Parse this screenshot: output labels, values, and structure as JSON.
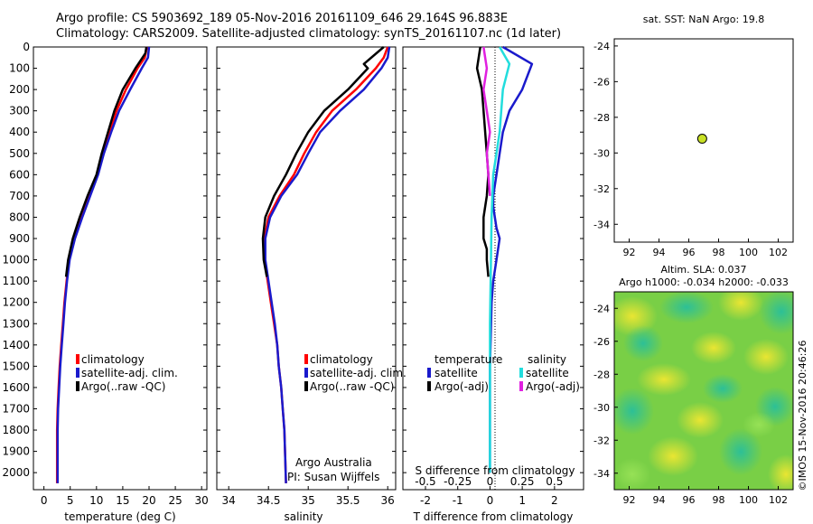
{
  "header": {
    "line1": "Argo profile: CS 5903692_189 05-Nov-2016 20161109_646 29.164S 96.883E",
    "line2": "Climatology: CARS2009. Satellite-adjusted climatology: synTS_20161107.nc (1d later)"
  },
  "colors": {
    "climatology": "#ff0000",
    "satellite": "#1a1acc",
    "argo": "#000000",
    "sat_salinity": "#22dddd",
    "argo_salinity": "#e020e0",
    "dot": "#c8e026"
  },
  "chart_data": [
    {
      "type": "line",
      "id": "temperature",
      "xlabel": "temperature (deg C)",
      "ylabel": "",
      "xlim": [
        -2,
        31
      ],
      "ylim": [
        2080,
        0
      ],
      "xticks": [
        0,
        5,
        10,
        15,
        20,
        25,
        30
      ],
      "yticks": [
        0,
        100,
        200,
        300,
        400,
        500,
        600,
        700,
        800,
        900,
        1000,
        1100,
        1200,
        1300,
        1400,
        1500,
        1600,
        1700,
        1800,
        1900,
        2000
      ],
      "legend": [
        "climatology",
        "satellite-adj. clim.",
        "Argo(..raw -QC)"
      ],
      "series": [
        {
          "name": "climatology",
          "x": [
            19.6,
            19.2,
            17.8,
            15.6,
            13.8,
            12.5,
            11.2,
            10.2,
            8.7,
            7.2,
            5.8,
            4.8,
            4.3,
            3.9,
            3.6,
            3.3,
            3.0,
            2.8,
            2.6,
            2.5,
            2.5
          ],
          "y": [
            0,
            50,
            100,
            200,
            300,
            400,
            500,
            600,
            700,
            800,
            900,
            1000,
            1100,
            1200,
            1300,
            1400,
            1500,
            1600,
            1700,
            1800,
            2050
          ]
        },
        {
          "name": "satellite-adj. clim.",
          "x": [
            20.0,
            19.8,
            18.6,
            16.4,
            14.3,
            12.8,
            11.4,
            10.3,
            8.8,
            7.3,
            5.9,
            4.9,
            4.4,
            4.0,
            3.7,
            3.4,
            3.1,
            2.9,
            2.7,
            2.6,
            2.6
          ],
          "y": [
            0,
            50,
            100,
            200,
            300,
            400,
            500,
            600,
            700,
            800,
            900,
            1000,
            1100,
            1200,
            1300,
            1400,
            1500,
            1600,
            1700,
            1800,
            2050
          ]
        },
        {
          "name": "Argo(..raw -QC)",
          "x": [
            19.5,
            19.3,
            17.4,
            15.0,
            13.4,
            12.2,
            11.0,
            10.0,
            8.3,
            6.8,
            5.5,
            4.6,
            4.2
          ],
          "y": [
            0,
            30,
            100,
            200,
            300,
            400,
            500,
            600,
            700,
            800,
            900,
            1000,
            1080
          ]
        }
      ]
    },
    {
      "type": "line",
      "id": "salinity",
      "xlabel": "salinity",
      "ylabel": "",
      "xlim": [
        33.85,
        36.1
      ],
      "ylim": [
        2080,
        0
      ],
      "xticks": [
        34,
        34.5,
        35,
        35.5,
        36
      ],
      "legend": [
        "climatology",
        "satellite-adj. clim.",
        "Argo(..raw -QC)"
      ],
      "annotation": [
        "Argo Australia",
        "PI: Susan Wijffels"
      ],
      "series": [
        {
          "name": "climatology",
          "x": [
            36.0,
            35.95,
            35.85,
            35.6,
            35.3,
            35.1,
            34.95,
            34.82,
            34.64,
            34.5,
            34.45,
            34.45,
            34.49,
            34.53,
            34.57,
            34.61,
            34.63,
            34.66,
            34.68,
            34.7,
            34.72
          ],
          "y": [
            0,
            50,
            100,
            200,
            300,
            400,
            500,
            600,
            700,
            800,
            900,
            1000,
            1100,
            1200,
            1300,
            1400,
            1500,
            1600,
            1700,
            1800,
            2050
          ]
        },
        {
          "name": "satellite-adj. clim.",
          "x": [
            36.02,
            36.0,
            35.92,
            35.7,
            35.4,
            35.15,
            35.0,
            34.86,
            34.66,
            34.52,
            34.46,
            34.46,
            34.5,
            34.54,
            34.58,
            34.61,
            34.63,
            34.66,
            34.68,
            34.7,
            34.72
          ],
          "y": [
            0,
            50,
            100,
            200,
            300,
            400,
            500,
            600,
            700,
            800,
            900,
            1000,
            1100,
            1200,
            1300,
            1400,
            1500,
            1600,
            1700,
            1800,
            2050
          ]
        },
        {
          "name": "Argo(..raw -QC)",
          "x": [
            35.95,
            35.7,
            35.75,
            35.5,
            35.2,
            35.0,
            34.85,
            34.72,
            34.57,
            34.46,
            34.43,
            34.44,
            34.48
          ],
          "y": [
            0,
            80,
            100,
            200,
            300,
            400,
            500,
            600,
            700,
            800,
            900,
            1000,
            1080
          ]
        }
      ]
    },
    {
      "type": "line",
      "id": "differences",
      "xlabel": "T difference from climatology",
      "xlabel_top": "S difference from climatology",
      "xlim": [
        -2.7,
        2.9
      ],
      "ylim": [
        2080,
        0
      ],
      "xticks": [
        -2,
        -1,
        0,
        1,
        2
      ],
      "xticks_secondary": [
        -0.5,
        -0.25,
        0,
        0.25,
        0.5
      ],
      "legend_titles": [
        "temperature",
        "salinity"
      ],
      "legend": [
        "satellite",
        "Argo(-adj)",
        "satellite",
        "Argo(-adj)"
      ],
      "series": [
        {
          "name": "satellite",
          "group": "temperature",
          "x": [
            0.4,
            1.3,
            1.0,
            0.6,
            0.4,
            0.3,
            0.2,
            0.1,
            0.1,
            0.2,
            0.3,
            0.2,
            0.1,
            0.05,
            0.0,
            0.0
          ],
          "y": [
            0,
            80,
            200,
            300,
            400,
            500,
            600,
            700,
            750,
            850,
            900,
            1000,
            1100,
            1200,
            1500,
            2000
          ]
        },
        {
          "name": "Argo(-adj)",
          "group": "temperature",
          "x": [
            -0.3,
            -0.4,
            -0.25,
            -0.2,
            -0.15,
            -0.1,
            -0.05,
            -0.1,
            -0.2,
            -0.2,
            -0.1,
            -0.1,
            -0.05
          ],
          "y": [
            0,
            100,
            200,
            300,
            400,
            500,
            600,
            700,
            800,
            900,
            950,
            1000,
            1080
          ]
        },
        {
          "name": "satellite",
          "group": "salinity",
          "x": [
            0.3,
            0.6,
            0.4,
            0.35,
            0.3,
            0.2,
            0.1,
            0.05,
            0.03,
            0.0,
            0.0
          ],
          "y": [
            0,
            80,
            200,
            300,
            400,
            500,
            600,
            800,
            1000,
            1300,
            2000
          ]
        },
        {
          "name": "Argo(-adj)",
          "group": "salinity",
          "x": [
            -0.2,
            -0.1,
            -0.2,
            -0.1,
            0.0,
            -0.1,
            -0.05,
            0.0
          ],
          "y": [
            0,
            100,
            200,
            300,
            400,
            500,
            600,
            700
          ]
        }
      ]
    },
    {
      "type": "scatter",
      "id": "location_map",
      "title": "sat. SST: NaN Argo: 19.8",
      "xlim": [
        91,
        103
      ],
      "ylim": [
        -35,
        -23.6
      ],
      "xticks": [
        92,
        94,
        96,
        98,
        100,
        102
      ],
      "yticks": [
        -24,
        -26,
        -28,
        -30,
        -32,
        -34
      ],
      "points": [
        {
          "x": 96.9,
          "y": -29.2
        }
      ]
    },
    {
      "type": "heatmap",
      "id": "sla_map",
      "title_line1": "Altim. SLA: 0.037",
      "title_line2": "Argo h1000: -0.034 h2000: -0.033",
      "xlim": [
        91,
        103
      ],
      "ylim": [
        -35,
        -23
      ],
      "xticks": [
        92,
        94,
        96,
        98,
        100,
        102
      ],
      "yticks": [
        -24,
        -26,
        -28,
        -30,
        -32,
        -34
      ]
    }
  ],
  "footer_vertical": "©IMOS 15-Nov-2016 20:46:26"
}
